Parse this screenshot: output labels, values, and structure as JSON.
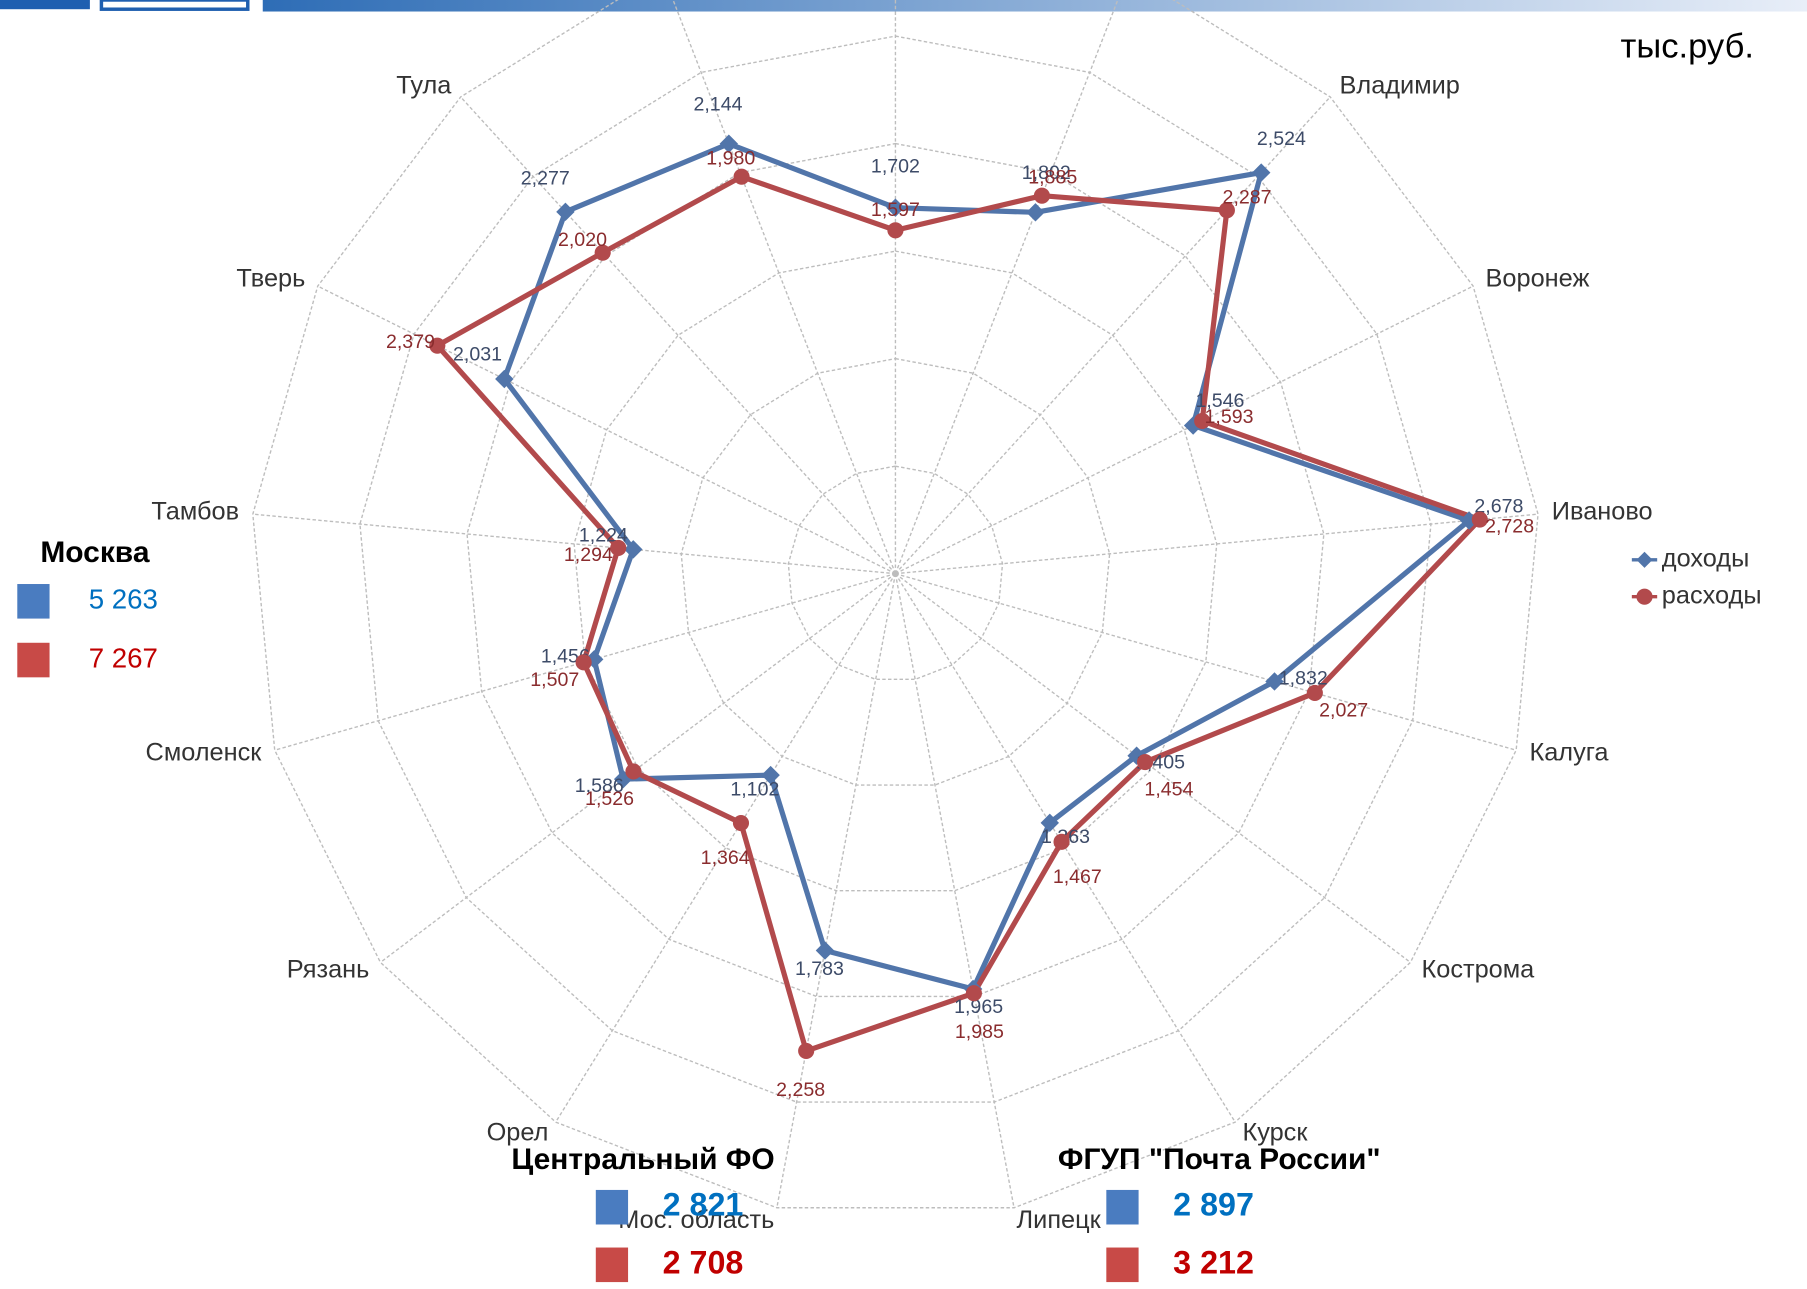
{
  "chart_data": {
    "type": "radar",
    "unit_label": "тыс.руб.",
    "categories": [
      null,
      null,
      "Владимир",
      "Воронеж",
      "Иваново",
      "Калуга",
      "Кострома",
      "Курск",
      "Липецк",
      "Мос. область",
      "Орел",
      "Рязань",
      "Смоленск",
      "Тамбов",
      "Тверь",
      "Тула",
      null
    ],
    "series": [
      {
        "name": "доходы",
        "color": "#5175aa",
        "marker": "diamond",
        "values": [
          1702,
          1802,
          2524,
          1546,
          2678,
          1832,
          1405,
          1363,
          1965,
          1783,
          1102,
          1586,
          1456,
          1224,
          2031,
          2277,
          2144
        ],
        "value_labels": [
          "1,702",
          "1,802",
          "2,524",
          "1,546",
          "2,678",
          "1,832",
          "1,405",
          "1,363",
          "1,965",
          "1,783",
          "1,102",
          "1,586",
          "1,456",
          "1,224",
          "2,031",
          "2,277",
          "2,144"
        ]
      },
      {
        "name": "расходы",
        "color": "#b24a4c",
        "marker": "circle",
        "values": [
          1597,
          1885,
          2287,
          1593,
          2728,
          2027,
          1454,
          1467,
          1985,
          2258,
          1364,
          1526,
          1507,
          1294,
          2379,
          2020,
          1980
        ],
        "value_labels": [
          "1,597",
          "1,885",
          "2,287",
          "1,593",
          "2,728",
          "2,027",
          "1,454",
          "1,467",
          "1,985",
          "2,258",
          "1,364",
          "1,526",
          "1,507",
          "1,294",
          "2,379",
          "2,020",
          "1,980"
        ]
      }
    ],
    "ylim": [
      0,
      3000
    ],
    "yticks": [
      0,
      500,
      1000,
      1500,
      2000,
      2500,
      3000
    ],
    "grid": true,
    "legend": "right"
  },
  "panels": [
    {
      "title": "Москва",
      "income": "5 263",
      "expense": "7 267"
    },
    {
      "title": "Центральный ФО",
      "income": "2 821",
      "expense": "2 708"
    },
    {
      "title": "ФГУП \"Почта России\"",
      "income": "2 897",
      "expense": "3 212"
    }
  ]
}
